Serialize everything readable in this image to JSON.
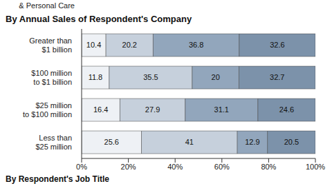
{
  "chart_data": {
    "type": "bar",
    "title": "By Annual Sales of Respondent's Company",
    "orientation": "horizontal",
    "stacked": true,
    "data_labels": true,
    "grid": false,
    "categories": [
      "Greater than\n$1 billion",
      "$100 million\nto $1 billion",
      "$25 million\nto $100 million",
      "Less than\n$25 million"
    ],
    "series": [
      {
        "color": "#eef1f5",
        "values": [
          10.4,
          11.8,
          16.4,
          25.6
        ]
      },
      {
        "color": "#c6d0dc",
        "values": [
          20.2,
          35.5,
          27.9,
          41
        ]
      },
      {
        "color": "#92a6bc",
        "values": [
          36.8,
          20,
          31.1,
          12.9
        ]
      },
      {
        "color": "#7c92aa",
        "values": [
          32.6,
          32.7,
          24.6,
          20.5
        ]
      }
    ],
    "xlim": [
      0,
      100
    ],
    "xticks": [
      {
        "value": 0,
        "label": "0%"
      },
      {
        "value": 20,
        "label": "20%"
      },
      {
        "value": 40,
        "label": "40%"
      },
      {
        "value": 60,
        "label": "60%"
      },
      {
        "value": 80,
        "label": "80%"
      },
      {
        "value": 100,
        "label": "100%"
      }
    ],
    "annotations": [
      "& Personal Care",
      "By Respondent's Job Title"
    ]
  }
}
